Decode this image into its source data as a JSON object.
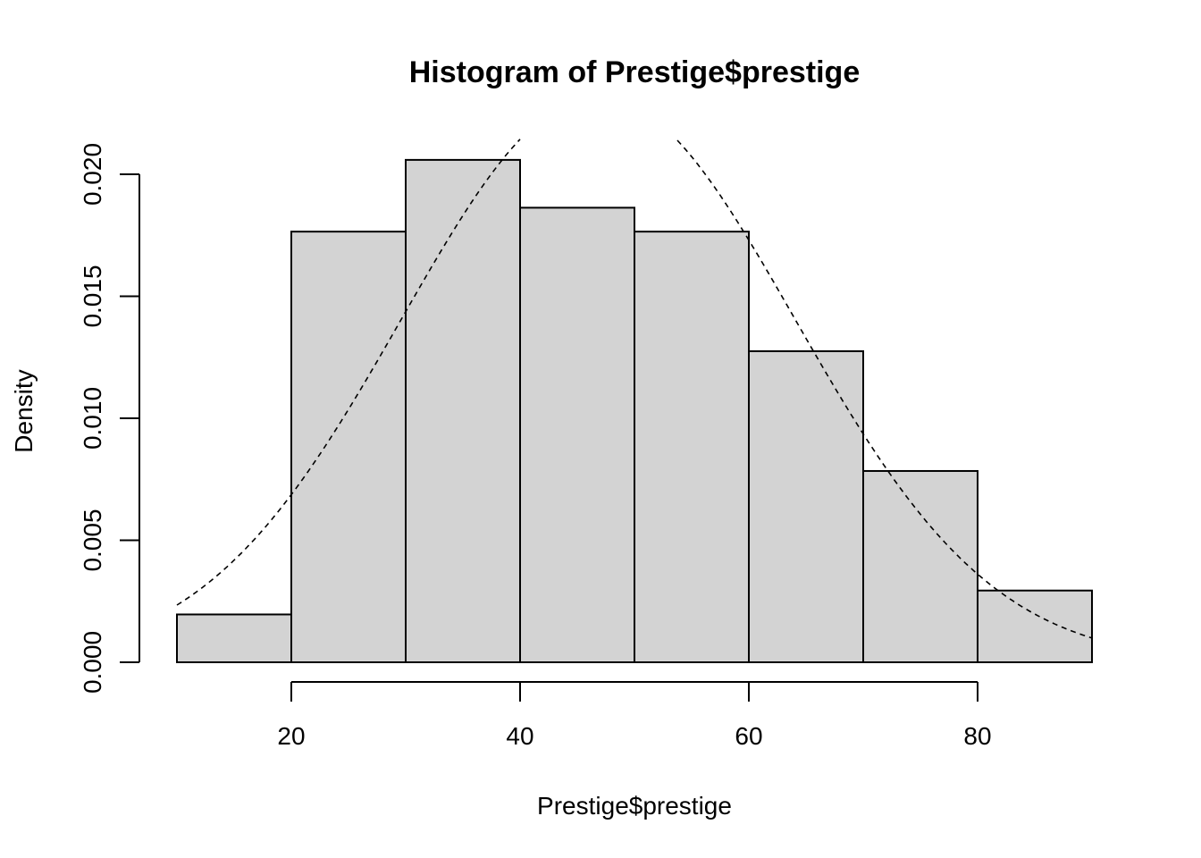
{
  "chart_data": {
    "type": "bar",
    "title": "Histogram of Prestige$prestige",
    "xlabel": "Prestige$prestige",
    "ylabel": "Density",
    "bins": [
      {
        "from": 10,
        "to": 20,
        "density": 0.00196
      },
      {
        "from": 20,
        "to": 30,
        "density": 0.01765
      },
      {
        "from": 30,
        "to": 40,
        "density": 0.02059
      },
      {
        "from": 40,
        "to": 50,
        "density": 0.01863
      },
      {
        "from": 50,
        "to": 60,
        "density": 0.01765
      },
      {
        "from": 60,
        "to": 70,
        "density": 0.01275
      },
      {
        "from": 70,
        "to": 80,
        "density": 0.00784
      },
      {
        "from": 80,
        "to": 90,
        "density": 0.00294
      }
    ],
    "overlay_curve": {
      "kind": "normal-density",
      "mean": 46.83,
      "sd": 17.2,
      "line_style": "dashed",
      "x_range": [
        10,
        90
      ]
    },
    "x_ticks": [
      "20",
      "40",
      "60",
      "80"
    ],
    "y_ticks": [
      "0.000",
      "0.005",
      "0.010",
      "0.015",
      "0.020"
    ],
    "xlim": [
      10,
      90
    ],
    "ylim": [
      0,
      0.0215
    ],
    "grid": false,
    "colors": {
      "bar_fill": "#d3d3d3",
      "bar_stroke": "#000000",
      "curve": "#000000"
    }
  }
}
